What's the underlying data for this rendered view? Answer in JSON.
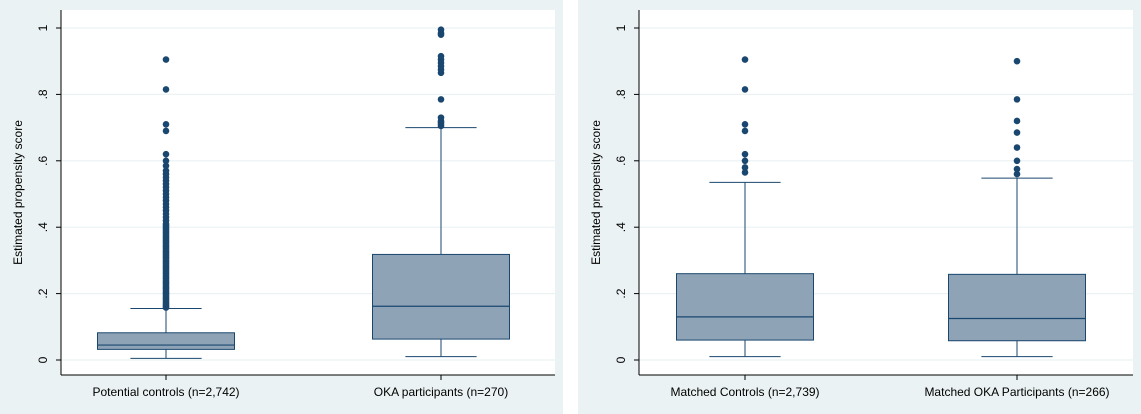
{
  "colors": {
    "outer_bg": "#eaf2f3",
    "plot_bg": "#ffffff",
    "box_fill": "#8fa3b7",
    "box_stroke": "#1a476f",
    "outlier": "#1a476f",
    "grid": "#eaf2f3"
  },
  "chart_data": [
    {
      "type": "box",
      "ylabel": "Estimated propensity score",
      "ylim": [
        0,
        1
      ],
      "yticks": [
        0,
        0.2,
        0.4,
        0.6,
        0.8,
        1
      ],
      "ytick_labels": [
        "0",
        ".2",
        ".4",
        ".6",
        ".8",
        "1"
      ],
      "grid": true,
      "categories": [
        "Potential controls (n=2,742)",
        "OKA participants (n=270)"
      ],
      "boxes": [
        {
          "min": 0.005,
          "q1": 0.032,
          "median": 0.045,
          "q3": 0.082,
          "max": 0.155,
          "outliers": [
            0.158,
            0.162,
            0.166,
            0.17,
            0.175,
            0.18,
            0.185,
            0.19,
            0.195,
            0.2,
            0.205,
            0.21,
            0.215,
            0.22,
            0.225,
            0.23,
            0.235,
            0.24,
            0.245,
            0.25,
            0.255,
            0.26,
            0.265,
            0.27,
            0.275,
            0.28,
            0.285,
            0.29,
            0.295,
            0.3,
            0.305,
            0.31,
            0.315,
            0.32,
            0.325,
            0.33,
            0.335,
            0.34,
            0.345,
            0.35,
            0.355,
            0.36,
            0.365,
            0.37,
            0.375,
            0.38,
            0.385,
            0.39,
            0.395,
            0.4,
            0.405,
            0.41,
            0.42,
            0.43,
            0.44,
            0.45,
            0.46,
            0.47,
            0.48,
            0.49,
            0.5,
            0.51,
            0.52,
            0.53,
            0.54,
            0.55,
            0.56,
            0.57,
            0.585,
            0.6,
            0.62,
            0.69,
            0.71,
            0.815,
            0.905
          ]
        },
        {
          "min": 0.01,
          "q1": 0.063,
          "median": 0.162,
          "q3": 0.318,
          "max": 0.7,
          "outliers": [
            0.705,
            0.71,
            0.715,
            0.72,
            0.73,
            0.785,
            0.865,
            0.875,
            0.885,
            0.895,
            0.905,
            0.915,
            0.98,
            0.985,
            0.995
          ]
        }
      ]
    },
    {
      "type": "box",
      "ylabel": "Estimated propensity score",
      "ylim": [
        0,
        1
      ],
      "yticks": [
        0,
        0.2,
        0.4,
        0.6,
        0.8,
        1
      ],
      "ytick_labels": [
        "0",
        ".2",
        ".4",
        ".6",
        ".8",
        "1"
      ],
      "grid": true,
      "categories": [
        "Matched Controls (n=2,739)",
        "Matched OKA Participants (n=266)"
      ],
      "boxes": [
        {
          "min": 0.01,
          "q1": 0.06,
          "median": 0.13,
          "q3": 0.26,
          "max": 0.535,
          "outliers": [
            0.565,
            0.58,
            0.6,
            0.62,
            0.69,
            0.71,
            0.815,
            0.905
          ]
        },
        {
          "min": 0.01,
          "q1": 0.058,
          "median": 0.125,
          "q3": 0.258,
          "max": 0.548,
          "outliers": [
            0.56,
            0.575,
            0.6,
            0.64,
            0.685,
            0.72,
            0.785,
            0.9
          ]
        }
      ]
    }
  ]
}
